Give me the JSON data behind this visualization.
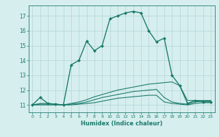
{
  "title": "",
  "xlabel": "Humidex (Indice chaleur)",
  "xlim": [
    -0.5,
    23.5
  ],
  "ylim": [
    10.5,
    17.7
  ],
  "yticks": [
    11,
    12,
    13,
    14,
    15,
    16,
    17
  ],
  "xticks": [
    0,
    1,
    2,
    3,
    4,
    5,
    6,
    7,
    8,
    9,
    10,
    11,
    12,
    13,
    14,
    15,
    16,
    17,
    18,
    19,
    20,
    21,
    22,
    23
  ],
  "bg_color": "#d6eeee",
  "grid_color": "#b8d8d8",
  "line_color": "#1a7a6a",
  "lines": [
    {
      "x": [
        0,
        1,
        2,
        3,
        4,
        5,
        6,
        7,
        8,
        9,
        10,
        11,
        12,
        13,
        14,
        15,
        16,
        17,
        18,
        19,
        20,
        21,
        22,
        23
      ],
      "y": [
        11.0,
        11.5,
        11.1,
        11.05,
        11.0,
        13.7,
        14.0,
        15.3,
        14.65,
        15.0,
        16.8,
        17.0,
        17.2,
        17.3,
        17.2,
        16.0,
        15.25,
        15.5,
        13.0,
        12.3,
        11.1,
        11.3,
        11.2,
        11.2
      ],
      "marker": "D",
      "markersize": 2.0,
      "linewidth": 1.0
    },
    {
      "x": [
        0,
        1,
        2,
        3,
        4,
        5,
        6,
        7,
        8,
        9,
        10,
        11,
        12,
        13,
        14,
        15,
        16,
        17,
        18,
        19,
        20,
        21,
        22,
        23
      ],
      "y": [
        11.0,
        11.1,
        11.1,
        11.05,
        11.0,
        11.1,
        11.2,
        11.35,
        11.55,
        11.7,
        11.85,
        12.0,
        12.1,
        12.2,
        12.3,
        12.4,
        12.45,
        12.5,
        12.55,
        12.3,
        11.3,
        11.3,
        11.3,
        11.3
      ],
      "marker": null,
      "markersize": 0,
      "linewidth": 0.8
    },
    {
      "x": [
        0,
        1,
        2,
        3,
        4,
        5,
        6,
        7,
        8,
        9,
        10,
        11,
        12,
        13,
        14,
        15,
        16,
        17,
        18,
        19,
        20,
        21,
        22,
        23
      ],
      "y": [
        11.0,
        11.05,
        11.05,
        11.05,
        11.0,
        11.05,
        11.1,
        11.2,
        11.35,
        11.5,
        11.6,
        11.7,
        11.8,
        11.9,
        11.95,
        12.0,
        12.05,
        11.5,
        11.2,
        11.1,
        11.05,
        11.2,
        11.25,
        11.25
      ],
      "marker": null,
      "markersize": 0,
      "linewidth": 0.8
    },
    {
      "x": [
        0,
        1,
        2,
        3,
        4,
        5,
        6,
        7,
        8,
        9,
        10,
        11,
        12,
        13,
        14,
        15,
        16,
        17,
        18,
        19,
        20,
        21,
        22,
        23
      ],
      "y": [
        11.0,
        11.0,
        11.0,
        11.0,
        11.0,
        11.0,
        11.05,
        11.1,
        11.15,
        11.25,
        11.35,
        11.45,
        11.5,
        11.55,
        11.6,
        11.65,
        11.65,
        11.2,
        11.1,
        11.05,
        11.0,
        11.1,
        11.15,
        11.15
      ],
      "marker": null,
      "markersize": 0,
      "linewidth": 0.8
    }
  ]
}
